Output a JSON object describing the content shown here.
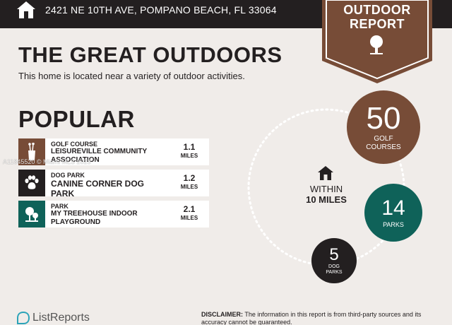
{
  "colors": {
    "background": "#f0ece9",
    "dark": "#231f20",
    "brown": "#774c37",
    "teal": "#0f6259"
  },
  "header": {
    "icon": "home-icon",
    "address": "2421 NE 10TH AVE, POMPANO BEACH, FL 33064"
  },
  "badge": {
    "line1": "OUTDOOR",
    "line2": "REPORT",
    "icon": "tree-icon"
  },
  "title": "THE GREAT OUTDOORS",
  "subtitle": "This home is located near a variety of outdoor activities.",
  "popular": {
    "heading": "POPULAR",
    "items": [
      {
        "category": "GOLF COURSE",
        "name": "LEISUREVILLE COMMUNITY ASSOCIATION",
        "distance": "1.1",
        "unit": "MILES",
        "icon": "golf-bag-icon"
      },
      {
        "category": "DOG PARK",
        "name": "CANINE CORNER DOG PARK",
        "distance": "1.2",
        "unit": "MILES",
        "icon": "paw-icon"
      },
      {
        "category": "PARK",
        "name": "MY TREEHOUSE INDOOR PLAYGROUND",
        "distance": "2.1",
        "unit": "MILES",
        "icon": "park-icon"
      }
    ]
  },
  "watermark": "A11845520 © Miami MLS 2023",
  "summary": {
    "within_line1": "WITHIN",
    "within_line2": "10 MILES",
    "golf": {
      "count": "50",
      "label_line1": "GOLF",
      "label_line2": "COURSES"
    },
    "parks": {
      "count": "14",
      "label": "PARKS"
    },
    "dog_parks": {
      "count": "5",
      "label_line1": "DOG",
      "label_line2": "PARKS"
    }
  },
  "footer": {
    "brand": "ListReports",
    "disclaimer_label": "DISCLAIMER:",
    "disclaimer_text": " The information in this report is from third-party sources and its accuracy cannot be guaranteed."
  }
}
